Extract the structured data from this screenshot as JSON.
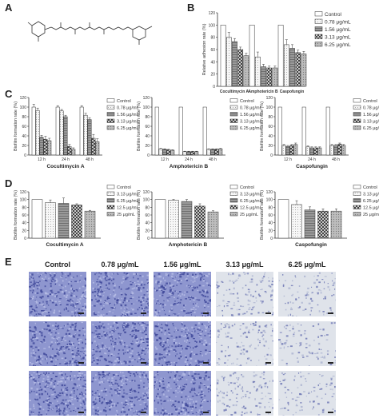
{
  "panels": {
    "A": "A",
    "B": "B",
    "C": "C",
    "D": "D",
    "E": "E"
  },
  "colors": {
    "control": "#ffffff",
    "c1": "#f3f3f3",
    "c2": "#c8c8c8",
    "c3": "#6a6a6a",
    "c4": "#9e9e9e",
    "axis": "#333333",
    "stain_dense": "#5a63b8",
    "stain_light": "#c9cfe0"
  },
  "chart_data": [
    {
      "id": "B",
      "type": "bar",
      "ylabel": "Relative adhesion rate (%)",
      "ylim": [
        0,
        120
      ],
      "yticks": [
        0,
        20,
        40,
        60,
        80,
        100,
        120
      ],
      "categories": [
        "Cocultimycin A",
        "Amphotericin B",
        "Caspofungin"
      ],
      "series": [
        {
          "name": "Control",
          "values": [
            100,
            100,
            100
          ]
        },
        {
          "name": "0.78 μg/mL",
          "values": [
            80,
            48,
            68
          ]
        },
        {
          "name": "1.56 μg/mL",
          "values": [
            73,
            32,
            62
          ]
        },
        {
          "name": "3.13 μg/mL",
          "values": [
            60,
            30,
            55
          ]
        },
        {
          "name": "6.25 μg/mL",
          "values": [
            50,
            30,
            53
          ]
        }
      ],
      "errors": [
        [
          0,
          0,
          0
        ],
        [
          8,
          8,
          8
        ],
        [
          5,
          4,
          6
        ],
        [
          4,
          3,
          4
        ],
        [
          4,
          3,
          4
        ]
      ]
    },
    {
      "id": "C",
      "type": "bar",
      "ylabel": "Biofilm formation rate (%)",
      "ylim": [
        0,
        120
      ],
      "yticks": [
        0,
        20,
        40,
        60,
        80,
        100,
        120
      ],
      "legend": [
        "Control",
        "0.78 μg/mL",
        "1.56 μg/mL",
        "3.13 μg/mL",
        "6.25 μg/mL"
      ],
      "groups": [
        {
          "title": "Cocultimycin A",
          "categories": [
            "12 h",
            "24 h",
            "48 h"
          ],
          "values": [
            [
              100,
              93,
              37,
              33,
              30
            ],
            [
              100,
              92,
              80,
              18,
              12
            ],
            [
              100,
              83,
              74,
              35,
              28
            ]
          ],
          "errors": [
            [
              6,
              5,
              4,
              6,
              5
            ],
            [
              3,
              3,
              3,
              4,
              3
            ],
            [
              3,
              4,
              4,
              8,
              6
            ]
          ]
        },
        {
          "title": "Amphotericin B",
          "categories": [
            "12 h",
            "24 h",
            "48 h"
          ],
          "values": [
            [
              100,
              13,
              12,
              11,
              10
            ],
            [
              100,
              7,
              7,
              7,
              7
            ],
            [
              100,
              12,
              12,
              12,
              13
            ]
          ],
          "errors": [
            [
              0,
              1,
              1,
              1,
              1
            ],
            [
              0,
              1,
              1,
              1,
              1
            ],
            [
              0,
              1,
              1,
              1,
              1
            ]
          ]
        },
        {
          "title": "Caspofungin",
          "categories": [
            "12 h",
            "24 h",
            "48 h"
          ],
          "values": [
            [
              100,
              20,
              18,
              20,
              22
            ],
            [
              100,
              17,
              15,
              15,
              15
            ],
            [
              100,
              20,
              20,
              23,
              20
            ]
          ],
          "errors": [
            [
              0,
              2,
              2,
              2,
              3
            ],
            [
              0,
              2,
              2,
              2,
              2
            ],
            [
              0,
              2,
              2,
              2,
              2
            ]
          ]
        }
      ]
    },
    {
      "id": "D",
      "type": "bar",
      "ylabel": "Biofilm formation rate (%)",
      "ylim": [
        0,
        120
      ],
      "yticks": [
        0,
        20,
        40,
        60,
        80,
        100,
        120
      ],
      "legend": [
        "Control",
        "3.13 μg/mL",
        "6.25 μg/mL",
        "12.5 μg/mL",
        "25 μg/mL"
      ],
      "groups": [
        {
          "title": "Cocultimycin A",
          "values": [
            100,
            92,
            90,
            86,
            70
          ],
          "errors": [
            0,
            7,
            14,
            3,
            2
          ]
        },
        {
          "title": "Amphotericin B",
          "values": [
            100,
            98,
            95,
            83,
            68
          ],
          "errors": [
            0,
            2,
            5,
            6,
            3
          ]
        },
        {
          "title": "Caspofungin",
          "values": [
            100,
            87,
            73,
            70,
            70
          ],
          "errors": [
            0,
            10,
            8,
            6,
            6
          ]
        }
      ]
    }
  ],
  "micrographs": {
    "columns": [
      "Control",
      "0.78 μg/mL",
      "1.56 μg/mL",
      "3.13 μg/mL",
      "6.25 μg/mL"
    ],
    "rows": 3,
    "density": [
      0.95,
      0.9,
      0.8,
      0.25,
      0.12
    ]
  }
}
